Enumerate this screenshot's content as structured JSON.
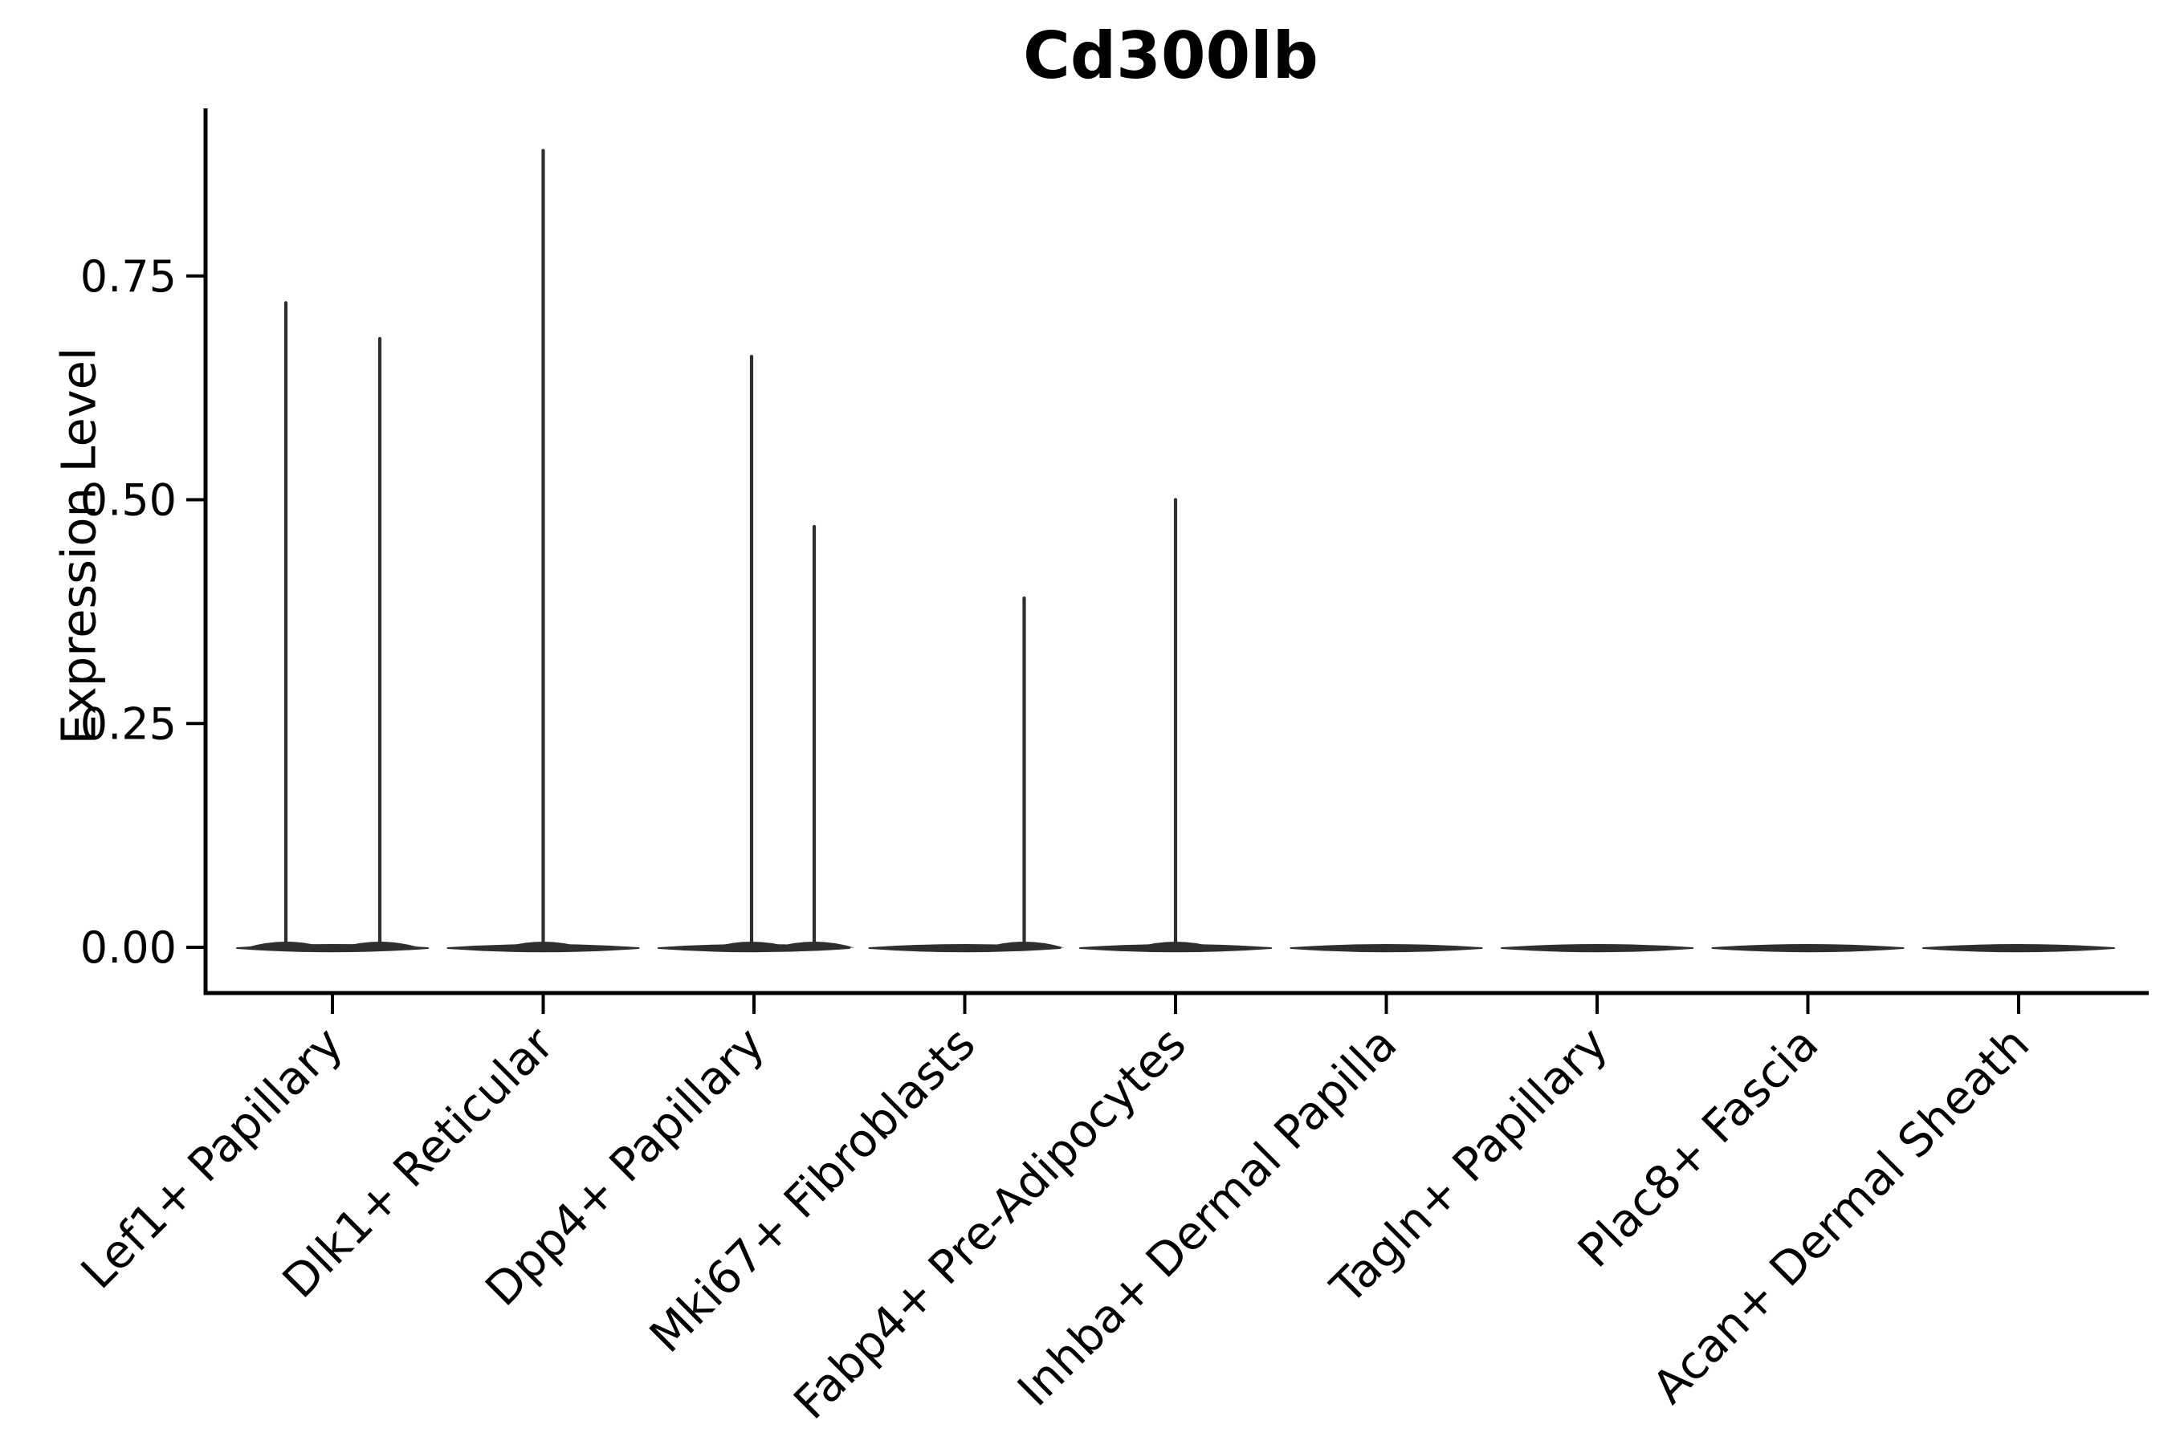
{
  "chart_data": {
    "type": "violin",
    "title": "Cd300lb",
    "xlabel": "",
    "ylabel": "Expression Level",
    "grid": false,
    "legend_position": "none",
    "background_color": "#ffffff",
    "violin_color": "#2e2e2e",
    "axis_color": "#000000",
    "text_color": "#000000",
    "y_ticks": [
      {
        "value": 0.0,
        "label": "0.00"
      },
      {
        "value": 0.25,
        "label": "0.25"
      },
      {
        "value": 0.5,
        "label": "0.50"
      },
      {
        "value": 0.75,
        "label": "0.75"
      }
    ],
    "y_range_shown": [
      -0.05,
      0.94
    ],
    "x_label_angle_deg": 45,
    "categories": [
      "Lef1+ Papillary",
      "Dlk1+ Reticular",
      "Dpp4+ Papillary",
      "Mki67+ Fibroblasts",
      "Fabp4+ Pre-Adipocytes",
      "Inhba+ Dermal Papilla",
      "Tagln+ Papillary",
      "Plac8+ Fascia",
      "Acan+ Dermal Sheath"
    ],
    "series": [
      {
        "category": "Lef1+ Papillary",
        "zero_mass": true,
        "spikes": [
          {
            "x_offset": -58,
            "max_value": 0.72
          },
          {
            "x_offset": 59,
            "max_value": 0.68
          }
        ]
      },
      {
        "category": "Dlk1+ Reticular",
        "zero_mass": true,
        "spikes": [
          {
            "x_offset": 0,
            "max_value": 0.89
          }
        ]
      },
      {
        "category": "Dpp4+ Papillary",
        "zero_mass": true,
        "spikes": [
          {
            "x_offset": -3,
            "max_value": 0.66
          },
          {
            "x_offset": 75,
            "max_value": 0.47
          }
        ]
      },
      {
        "category": "Mki67+ Fibroblasts",
        "zero_mass": true,
        "spikes": [
          {
            "x_offset": 74,
            "max_value": 0.39
          }
        ]
      },
      {
        "category": "Fabp4+ Pre-Adipocytes",
        "zero_mass": true,
        "spikes": [
          {
            "x_offset": 0,
            "max_value": 0.5
          }
        ]
      },
      {
        "category": "Inhba+ Dermal Papilla",
        "zero_mass": true,
        "spikes": []
      },
      {
        "category": "Tagln+ Papillary",
        "zero_mass": true,
        "spikes": []
      },
      {
        "category": "Plac8+ Fascia",
        "zero_mass": true,
        "spikes": []
      },
      {
        "category": "Acan+ Dermal Sheath",
        "zero_mass": true,
        "spikes": []
      }
    ]
  }
}
